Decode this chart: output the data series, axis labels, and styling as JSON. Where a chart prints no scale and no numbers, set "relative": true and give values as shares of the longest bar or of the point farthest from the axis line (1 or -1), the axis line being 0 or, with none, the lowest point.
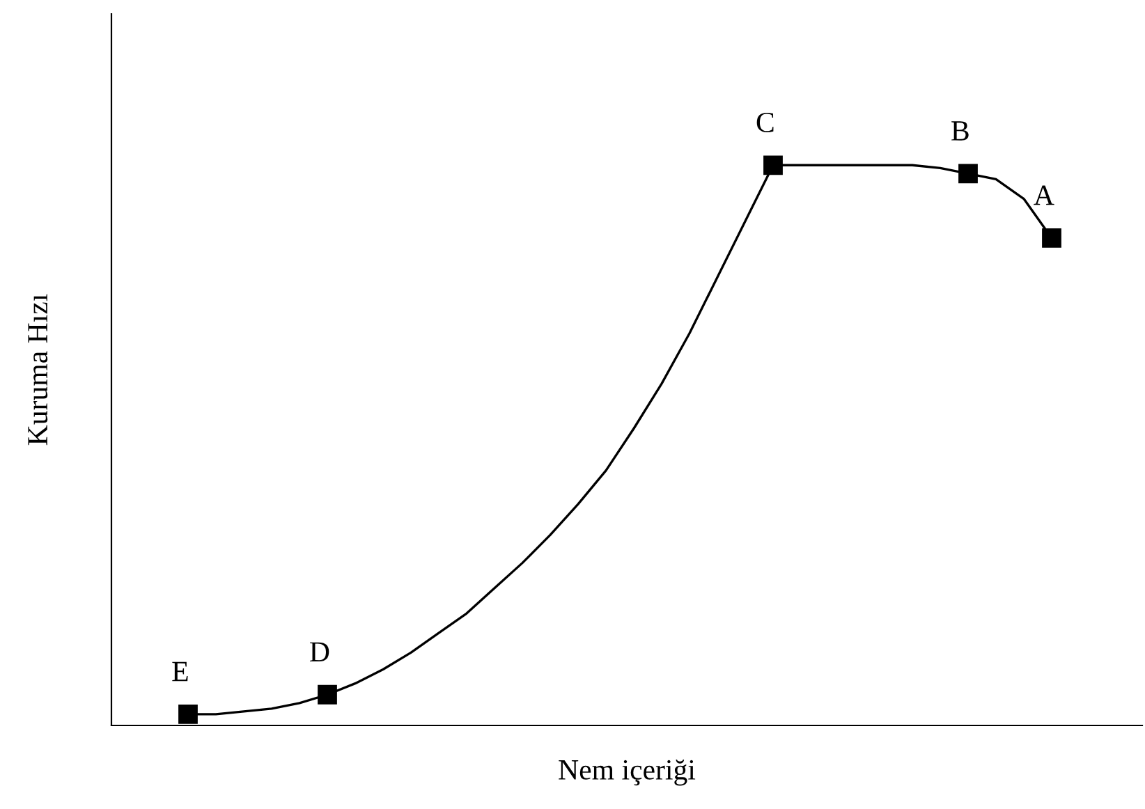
{
  "chart_data": {
    "type": "line",
    "relative": true,
    "xlabel": "Nem içeriği",
    "ylabel": "Kuruma Hızı",
    "grid": false,
    "legend": false,
    "categories": [
      null,
      null,
      null,
      null,
      null,
      null,
      null,
      null,
      null,
      null,
      null,
      null,
      null,
      null,
      null,
      null,
      null,
      null,
      null,
      null,
      null,
      null,
      null,
      null,
      null,
      null,
      null,
      null,
      null,
      null,
      null,
      null
    ],
    "series": [
      {
        "color": "#000000",
        "values": [
          0.02,
          0.02,
          0.025,
          0.03,
          0.04,
          0.055,
          0.075,
          0.1,
          0.13,
          0.165,
          0.2,
          0.245,
          0.29,
          0.34,
          0.395,
          0.455,
          0.53,
          0.61,
          0.7,
          0.8,
          0.9,
          1.0,
          1.0,
          1.0,
          1.0,
          1.0,
          1.0,
          0.995,
          0.985,
          0.975,
          0.94,
          0.87
        ]
      }
    ],
    "annotations": [
      {
        "text": "E",
        "y": 0.02
      },
      {
        "text": "D",
        "y": 0.055
      },
      {
        "text": "C",
        "y": 1.0
      },
      {
        "text": "B",
        "y": 0.985
      },
      {
        "text": "A",
        "y": 0.87
      }
    ]
  }
}
